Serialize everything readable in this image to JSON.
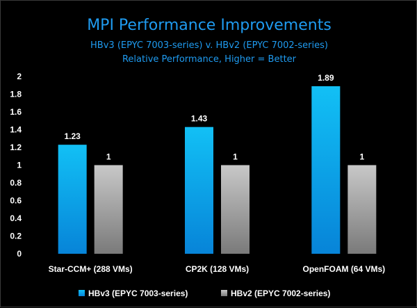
{
  "chart_data": {
    "type": "bar",
    "title": "MPI Performance Improvements",
    "subtitle_lines": [
      "HBv3 (EPYC 7003-series) v. HBv2 (EPYC 7002-series)",
      "Relative Performance, Higher = Better"
    ],
    "categories": [
      "Star-CCM+ (288 VMs)",
      "CP2K (128 VMs)",
      "OpenFOAM (64 VMs)"
    ],
    "series": [
      {
        "name": "HBv3 (EPYC 7003-series)",
        "values": [
          1.23,
          1.43,
          1.89
        ],
        "labels": [
          "1.23",
          "1.43",
          "1.89"
        ],
        "color": "#0ab4f0"
      },
      {
        "name": "HBv2 (EPYC 7002-series)",
        "values": [
          1,
          1,
          1
        ],
        "labels": [
          "1",
          "1",
          "1"
        ],
        "color": "#a6a6a6"
      }
    ],
    "yticks": [
      "0",
      "0.2",
      "0.4",
      "0.6",
      "0.8",
      "1",
      "1.2",
      "1.4",
      "1.6",
      "1.8",
      "2"
    ],
    "ylim": [
      0,
      2
    ],
    "grid": false,
    "legend": "bottom"
  }
}
